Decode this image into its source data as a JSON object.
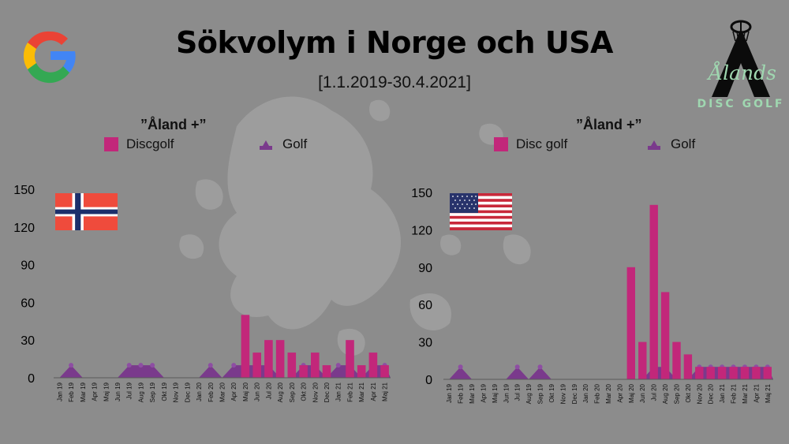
{
  "title": "Sökvolym i Norge och USA",
  "subtitle": "[1.1.2019-30.4.2021]",
  "logo": {
    "name": "Ålands",
    "sub": "DISC GOLF",
    "icon": "google-g-icon"
  },
  "colors": {
    "discgolf": "#c2277a",
    "golf": "#7a3a8c",
    "axis": "#555555",
    "background": "#8c8c8c"
  },
  "chart_data": [
    {
      "type": "bar",
      "region": "Norway",
      "flag": "norway-flag-icon",
      "legend_title": "”Åland +”",
      "categories": [
        "Jan 19",
        "Feb 19",
        "Mar 19",
        "Apr 19",
        "Maj 19",
        "Jun 19",
        "Jul 19",
        "Aug 19",
        "Sep 19",
        "Okt 19",
        "Nov 19",
        "Dec 19",
        "Jan 20",
        "Feb 20",
        "Mar 20",
        "Apr 20",
        "Maj 20",
        "Jun 20",
        "Jul 20",
        "Aug 20",
        "Sep 20",
        "Okt 20",
        "Nov 20",
        "Dec 20",
        "Jan 21",
        "Feb 21",
        "Mar 21",
        "Apr 21",
        "Maj 21"
      ],
      "tick_labels": [
        "Jan 19",
        "Feb 19",
        "Mar 19",
        "Apr 19",
        "Maj 19",
        "Jun 19",
        "Jul 19",
        "Aug 19",
        "Sep 19",
        "Okt 19",
        "Nov 19",
        "Dec 19",
        "Jan 20",
        "Feb 20",
        "Mar 20",
        "Apr 20",
        "Maj 20",
        "Jun 20",
        "Jul 20",
        "Aug 20",
        "Sep 20",
        "Okt 20",
        "Nov 20",
        "Dec 20",
        "Jan 21",
        "Feb 21",
        "Mar 21",
        "Apr 21",
        "Maj 21"
      ],
      "series": [
        {
          "name": "Discgolf",
          "type": "bar",
          "values": [
            0,
            0,
            0,
            0,
            0,
            0,
            0,
            0,
            0,
            0,
            0,
            0,
            0,
            0,
            0,
            0,
            50,
            20,
            30,
            30,
            20,
            10,
            20,
            10,
            0,
            30,
            10,
            20,
            10
          ]
        },
        {
          "name": "Golf",
          "type": "area",
          "values": [
            0,
            10,
            0,
            0,
            0,
            0,
            10,
            10,
            10,
            0,
            0,
            0,
            0,
            10,
            0,
            10,
            10,
            10,
            10,
            0,
            0,
            10,
            10,
            0,
            10,
            10,
            0,
            10,
            10
          ]
        }
      ],
      "yticks": [
        "0",
        "30",
        "60",
        "90",
        "120",
        "150"
      ],
      "ylim": [
        0,
        150
      ],
      "grid": false
    },
    {
      "type": "bar",
      "region": "USA",
      "flag": "usa-flag-icon",
      "legend_title": "”Åland +”",
      "categories": [
        "Jan 19",
        "Feb 19",
        "Mar 19",
        "Apr 19",
        "Maj 19",
        "Jun 19",
        "Jul 19",
        "Aug 19",
        "Sep 19",
        "Okt 19",
        "Nov 19",
        "Dec 19",
        "Jan 20",
        "Feb 20",
        "Mar 20",
        "Apr 20",
        "Maj 20",
        "Jun 20",
        "Jul 20",
        "Aug 20",
        "Sep 20",
        "Okt 20",
        "Nov 20",
        "Dec 20",
        "Jan 21",
        "Feb 21",
        "Mar 21",
        "Apr 21",
        "Maj 21"
      ],
      "tick_labels": [
        "Jan 19",
        "Feb 19",
        "Mar 19",
        "Apr 19",
        "Maj 19",
        "Jun 19",
        "Jul 19",
        "Aug 19",
        "Sep 19",
        "Okt 19",
        "Nov 19",
        "Dec 19",
        "Jan 20",
        "Feb 20",
        "Mar 20",
        "Apr 20",
        "Maj 20",
        "Jun 20",
        "Jul 20",
        "Aug 20",
        "Sep 20",
        "Okt 20",
        "Nov 20",
        "Dec 20",
        "Jan 21",
        "Feb 21",
        "Mar 21",
        "Apr 21",
        "Maj 21"
      ],
      "series": [
        {
          "name": "Disc golf",
          "type": "bar",
          "values": [
            0,
            0,
            0,
            0,
            0,
            0,
            0,
            0,
            0,
            0,
            0,
            0,
            0,
            0,
            0,
            0,
            90,
            30,
            140,
            70,
            30,
            20,
            10,
            10,
            10,
            10,
            10,
            10,
            10
          ]
        },
        {
          "name": "Golf",
          "type": "area",
          "values": [
            0,
            10,
            0,
            0,
            0,
            0,
            10,
            0,
            10,
            0,
            0,
            0,
            0,
            0,
            0,
            0,
            0,
            0,
            10,
            10,
            0,
            0,
            10,
            10,
            10,
            10,
            10,
            10,
            10
          ]
        }
      ],
      "yticks": [
        "0",
        "30",
        "60",
        "90",
        "120",
        "150"
      ],
      "ylim": [
        0,
        150
      ],
      "grid": false
    }
  ]
}
